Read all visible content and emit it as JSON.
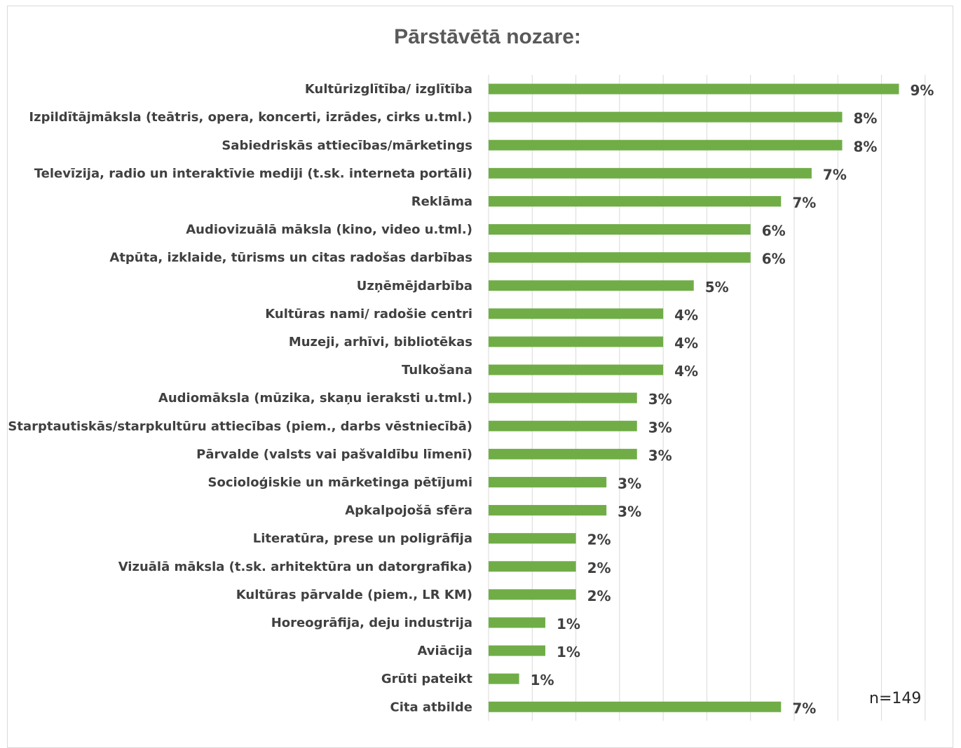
{
  "chart_data": {
    "type": "bar",
    "orientation": "horizontal",
    "title": "Pārstāvētā nozare:",
    "note": "n=149",
    "bar_color": "#70ad47",
    "grid": true,
    "xlim": [
      0,
      10.5
    ],
    "categories": [
      "Kultūrizglītība/ izglītība",
      "Izpildītājmāksla (teātris, opera, koncerti, izrādes, cirks u.tml.)",
      "Sabiedriskās attiecības/mārketings",
      "Televīzija, radio un interaktīvie mediji (t.sk. interneta portāli)",
      "Reklāma",
      "Audiovizuālā māksla (kino, video u.tml.)",
      "Atpūta, izklaide, tūrisms un citas radošas darbības",
      "Uzņēmējdarbība",
      "Kultūras nami/ radošie centri",
      "Muzeji, arhīvi, bibliotēkas",
      "Tulkošana",
      "Audiomāksla (mūzika, skaņu ieraksti u.tml.)",
      "Starptautiskās/starpkultūru attiecības (piem., darbs vēstniecībā)",
      "Pārvalde (valsts vai pašvaldību līmenī)",
      "Socioloģiskie un mārketinga pētījumi",
      "Apkalpojošā sfēra",
      "Literatūra, prese un poligrāfija",
      "Vizuālā māksla (t.sk. arhitektūra un datorgrafika)",
      "Kultūras pārvalde (piem., LR KM)",
      "Horeogrāfija, deju industrija",
      "Aviācija",
      "Grūti pateikt",
      "Cita atbilde"
    ],
    "values": [
      9.4,
      8.1,
      8.1,
      7.4,
      6.7,
      6.0,
      6.0,
      4.7,
      4.0,
      4.0,
      4.0,
      3.4,
      3.4,
      3.4,
      2.7,
      2.7,
      2.0,
      2.0,
      2.0,
      1.3,
      1.3,
      0.7,
      6.7
    ],
    "data_labels": [
      "9%",
      "8%",
      "8%",
      "7%",
      "7%",
      "6%",
      "6%",
      "5%",
      "4%",
      "4%",
      "4%",
      "3%",
      "3%",
      "3%",
      "3%",
      "3%",
      "2%",
      "2%",
      "2%",
      "1%",
      "1%",
      "1%",
      "7%"
    ]
  }
}
